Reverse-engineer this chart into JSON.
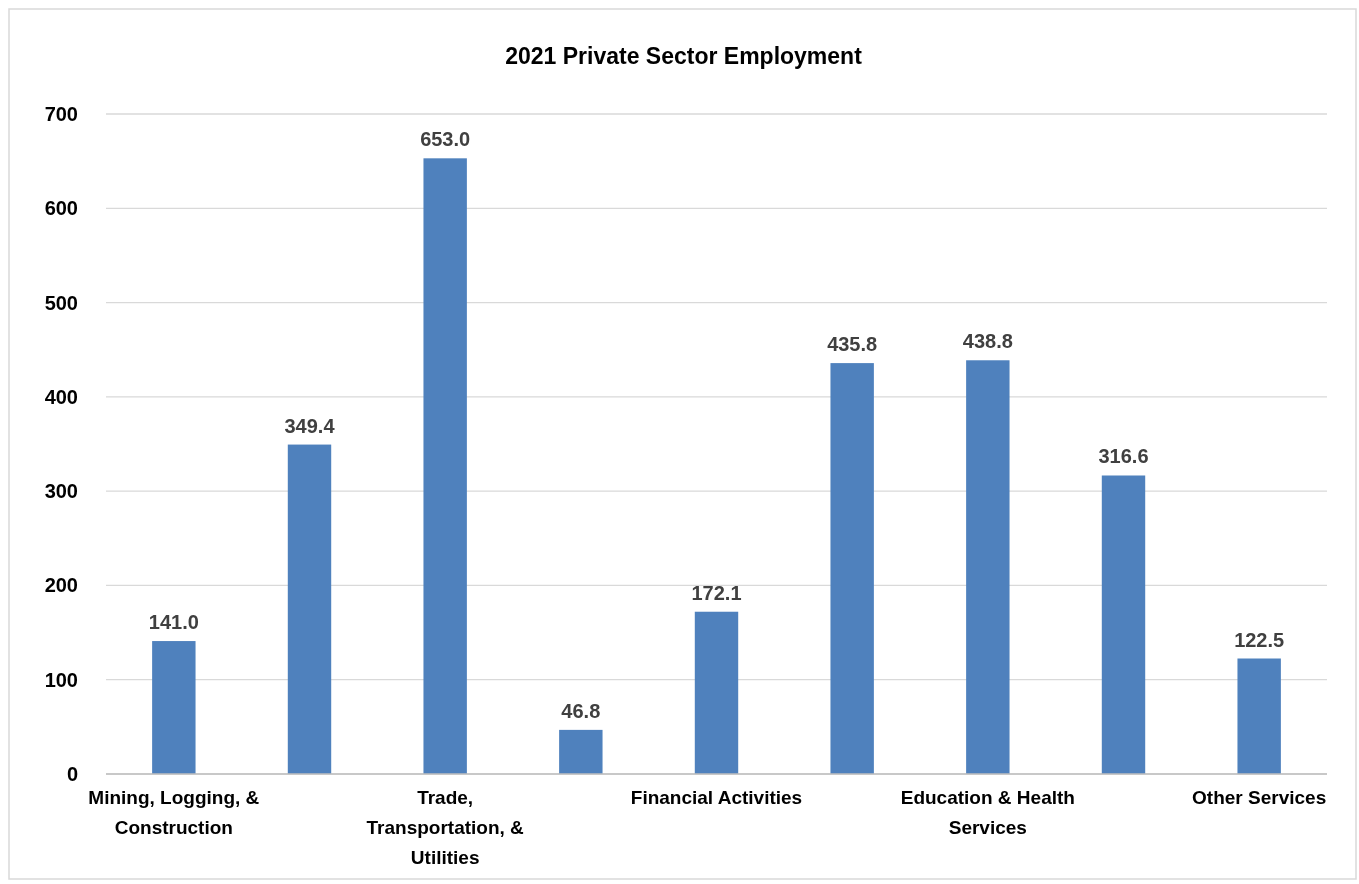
{
  "chart_data": {
    "type": "bar",
    "title": "2021 Private Sector Employment",
    "categories": [
      "Mining, Logging, & Construction",
      null,
      "Trade, Transportation, & Utilities",
      null,
      "Financial Activities",
      null,
      "Education & Health Services",
      null,
      "Other Services"
    ],
    "values": [
      141.0,
      349.4,
      653.0,
      46.8,
      172.1,
      435.8,
      438.8,
      316.6,
      122.5
    ],
    "value_labels": [
      "141.0",
      "349.4",
      "653.0",
      "46.8",
      "172.1",
      "435.8",
      "438.8",
      "316.6",
      "122.5"
    ],
    "color": "#4f81bd",
    "ylim": [
      0,
      700
    ],
    "yticks": [
      0,
      100,
      200,
      300,
      400,
      500,
      600,
      700
    ],
    "grid": "y"
  }
}
